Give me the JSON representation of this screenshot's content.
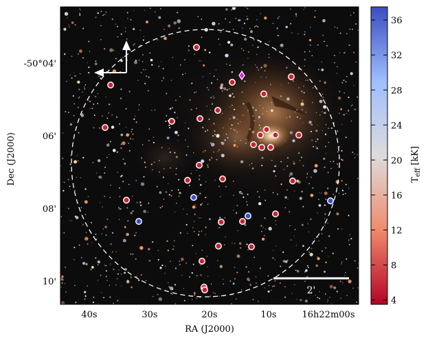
{
  "image": {
    "x_axis_title": "RA (J2000)",
    "y_axis_title": "Dec (J2000)",
    "x_ticks": [
      "40s",
      "30s",
      "20s",
      "10s",
      "16h22m00s"
    ],
    "y_ticks": [
      "-50°04'",
      "06'",
      "08'",
      "10'"
    ],
    "scale_bar_label": "2'",
    "compass_icon": "north-east-arrows",
    "colorbar": {
      "title_main": "T",
      "title_sub": "eff",
      "title_unit": " [kK]",
      "ticks": [
        "4",
        "8",
        "12",
        "16",
        "20",
        "24",
        "28",
        "32",
        "36"
      ],
      "range": [
        3.5,
        37.5
      ],
      "colors": [
        "#b40426",
        "#f7b89c",
        "#dddddd",
        "#9ebeff",
        "#3b4cc0"
      ]
    },
    "markers": {
      "red": "#cc2233",
      "blue": "#3b50c8",
      "diamond": "#dd22dd"
    }
  }
}
